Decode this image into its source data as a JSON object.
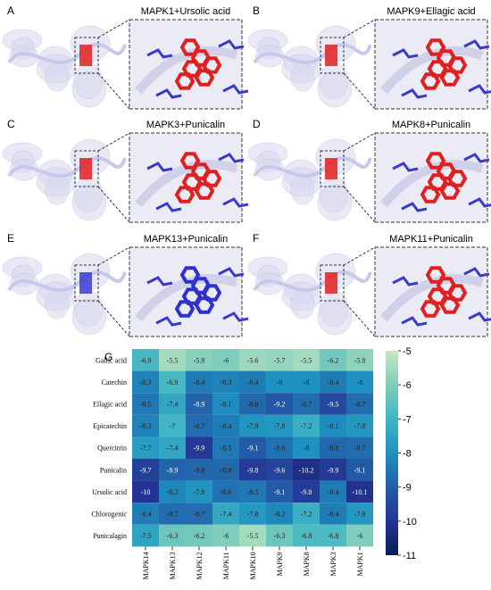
{
  "panels": [
    {
      "label": "A",
      "title": "MAPK1+Ursolic acid"
    },
    {
      "label": "B",
      "title": "MAPK9+Ellagic acid"
    },
    {
      "label": "C",
      "title": "MAPK3+Punicalin"
    },
    {
      "label": "D",
      "title": "MAPK8+Punicalin"
    },
    {
      "label": "E",
      "title": "MAPK13+Punicalin"
    },
    {
      "label": "F",
      "title": "MAPK11+Punicalin"
    }
  ],
  "chart_data": {
    "type": "heatmap",
    "label": "G",
    "rows": [
      "Gallic acid",
      "Catechin",
      "Ellagic acid",
      "Epicatechin",
      "Quercitrin",
      "Punicalin",
      "Ursolic acid",
      "Chlorogenic",
      "Punicalagin"
    ],
    "columns": [
      "MAPK14",
      "MAPK13",
      "MAPK12",
      "MAPK11",
      "MAPK10",
      "MAPK9",
      "MAPK8",
      "MAPK3",
      "MAPK1"
    ],
    "values": [
      [
        -6.9,
        -5.5,
        -5.9,
        -6,
        -5.6,
        -5.7,
        -5.5,
        -6.2,
        -5.8
      ],
      [
        -8.3,
        -6.9,
        -8.4,
        -8.3,
        -8.4,
        -8,
        -8,
        -8.4,
        -8
      ],
      [
        -8.5,
        -7.4,
        -8.9,
        -8.1,
        -8.8,
        -9.2,
        -8.7,
        -9.5,
        -8.7
      ],
      [
        -8.3,
        -7,
        -8.7,
        -8.4,
        -7.9,
        -7.8,
        -7.2,
        -8.1,
        -7.8
      ],
      [
        -7.7,
        -7.4,
        -9.9,
        -8.5,
        -9.1,
        -8.6,
        -8,
        -8.8,
        -8.7
      ],
      [
        -9.7,
        -8.9,
        -8.8,
        -8.8,
        -9.8,
        -9.6,
        -10.2,
        -9.9,
        -9.1
      ],
      [
        -10,
        -8.2,
        -7.9,
        -8.6,
        -8.5,
        -9.1,
        -9.8,
        -8.4,
        -10.1
      ],
      [
        -8.4,
        -8.7,
        -8.7,
        -7.4,
        -7.8,
        -8.2,
        -7.2,
        -8.4,
        -7.8
      ],
      [
        -7.5,
        -6.3,
        -6.2,
        -6,
        -5.5,
        -6.3,
        -6.8,
        -6.8,
        -6
      ]
    ],
    "clim": [
      -11,
      -5
    ],
    "cticks": [
      -5,
      -6,
      -7,
      -8,
      -9,
      -10,
      -11
    ],
    "colors": [
      "#081d58",
      "#253494",
      "#225ea8",
      "#1d91c0",
      "#41b6c4",
      "#7fcdbb",
      "#c7e9c0"
    ]
  }
}
